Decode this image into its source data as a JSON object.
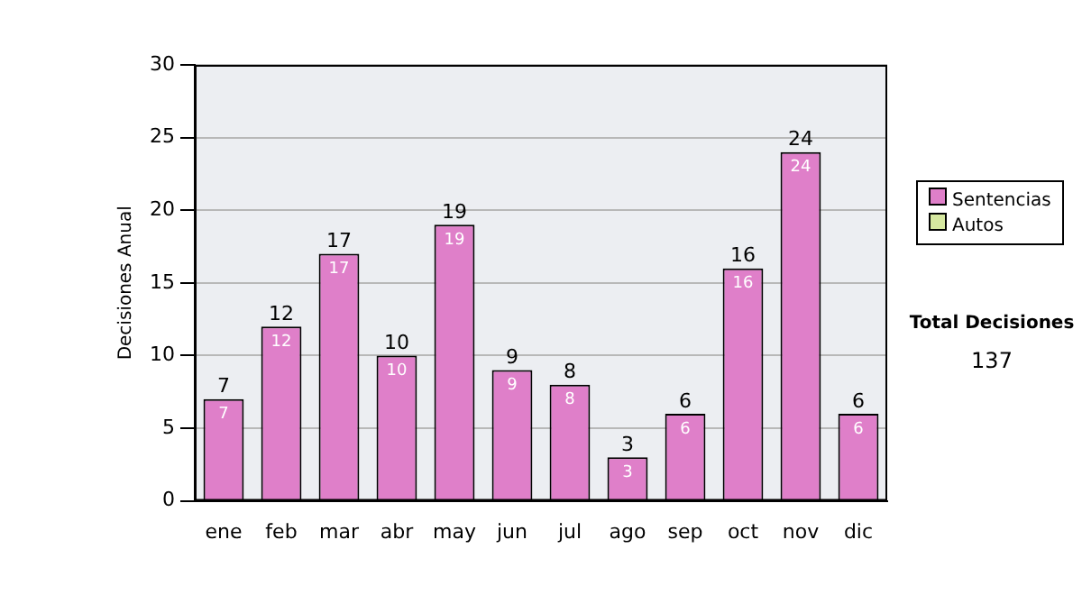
{
  "chart_data": {
    "type": "bar",
    "ylabel": "Decisiones Anual",
    "categories": [
      "ene",
      "feb",
      "mar",
      "abr",
      "may",
      "jun",
      "jul",
      "ago",
      "sep",
      "oct",
      "nov",
      "dic"
    ],
    "series": [
      {
        "name": "Sentencias",
        "color": "#df7fc9",
        "values": [
          7,
          12,
          17,
          10,
          19,
          9,
          8,
          3,
          6,
          16,
          24,
          6
        ],
        "value_labels": [
          "7",
          "12",
          "17",
          "10",
          "19",
          "9",
          "8",
          "3",
          "6",
          "16",
          "24",
          "6"
        ]
      },
      {
        "name": "Autos",
        "color": "#d6e8a0",
        "values": [
          0,
          0,
          0,
          0,
          0,
          0,
          0,
          0,
          0,
          0,
          0,
          0
        ]
      }
    ],
    "stacked": true,
    "totals": [
      "7",
      "12",
      "17",
      "10",
      "19",
      "9",
      "8",
      "3",
      "6",
      "16",
      "24",
      "6"
    ],
    "ylim": [
      0,
      30
    ],
    "yticks": [
      0,
      5,
      10,
      15,
      20,
      25,
      30
    ],
    "grid": "y",
    "legend": "right",
    "annotations": [
      "Total Decisiones",
      "137"
    ]
  }
}
